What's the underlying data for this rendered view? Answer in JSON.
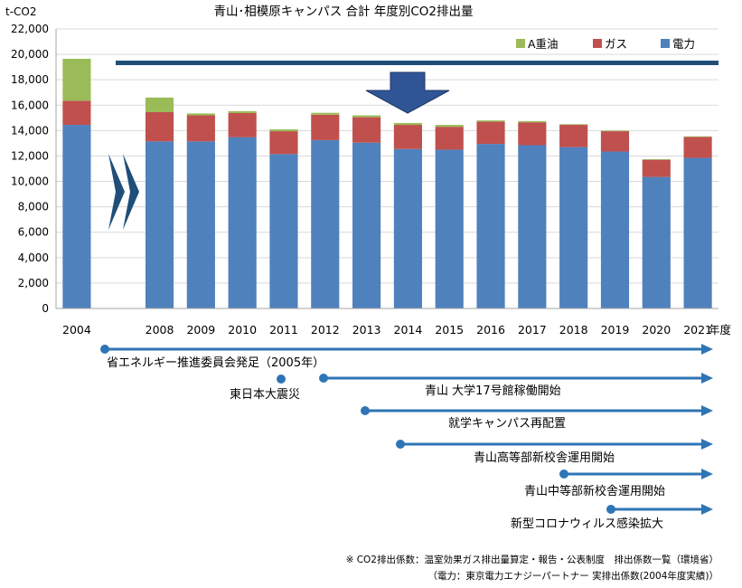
{
  "chart_data": {
    "type": "bar",
    "title": "青山･相模原キャンパス 合計 年度別CO2排出量",
    "ylabel": "t-CO2",
    "xlabel_suffix": "年度",
    "ylim": [
      0,
      22000
    ],
    "yticks": [
      "0",
      "2,000",
      "4,000",
      "6,000",
      "8,000",
      "10,000",
      "12,000",
      "14,000",
      "16,000",
      "18,000",
      "20,000",
      "22,000"
    ],
    "categories": [
      "2004",
      "",
      "2008",
      "2009",
      "2010",
      "2011",
      "2012",
      "2013",
      "2014",
      "2015",
      "2016",
      "2017",
      "2018",
      "2019",
      "2020",
      "2021"
    ],
    "series": [
      {
        "name": "電力",
        "color": "#4f81bd",
        "values": [
          14450,
          null,
          13150,
          13150,
          13480,
          12150,
          13250,
          13050,
          12550,
          12500,
          12950,
          12850,
          12700,
          12350,
          10350,
          11850
        ]
      },
      {
        "name": "ガス",
        "color": "#c0504d",
        "values": [
          1900,
          null,
          2300,
          2050,
          1900,
          1800,
          2000,
          2000,
          1900,
          1800,
          1750,
          1800,
          1750,
          1600,
          1350,
          1650
        ]
      },
      {
        "name": "A重油",
        "color": "#9bbb59",
        "values": [
          3300,
          null,
          1150,
          150,
          150,
          150,
          150,
          150,
          150,
          150,
          100,
          100,
          50,
          50,
          50,
          50
        ]
      }
    ],
    "grid": true,
    "legend": "top-right"
  },
  "events": [
    "省エネルギー推進委員会発足（2005年）",
    "東日本大震災",
    "青山 大学17号館稼働開始",
    "就学キャンパス再配置",
    "青山高等部新校舎運用開始",
    "青山中等部新校舎運用開始",
    "新型コロナウィルス感染拡大"
  ],
  "footnote": {
    "line1": "※ CO2排出係数：温室効果ガス排出量算定・報告・公表制度　排出係数一覧（環境省）",
    "line2": "（電力：東京電力エナジーパートナー 実排出係数(2004年度実績)）"
  },
  "colors": {
    "arrow": "#2e75b6",
    "target_line": "#1f4e79",
    "down_arrow": "#2f5597",
    "chevron": "#1f4e79",
    "grid": "#d9d9d9"
  }
}
